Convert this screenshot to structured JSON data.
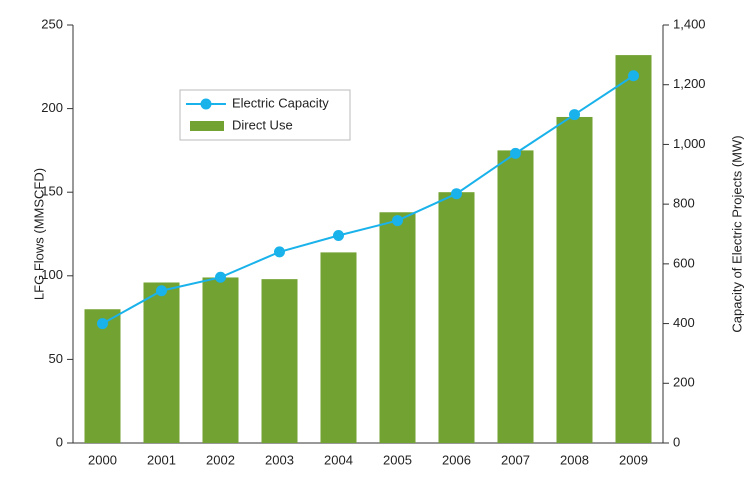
{
  "chart_data": {
    "type": "bar_line",
    "categories": [
      "2000",
      "2001",
      "2002",
      "2003",
      "2004",
      "2005",
      "2006",
      "2007",
      "2008",
      "2009"
    ],
    "series": [
      {
        "name": "Direct Use",
        "type": "bar",
        "color": "#72a232",
        "values": [
          80,
          96,
          99,
          98,
          114,
          138,
          150,
          175,
          195,
          232
        ]
      },
      {
        "name": "Electric Capacity",
        "type": "line",
        "axis": "y2",
        "color": "#1ab2ea",
        "values": [
          400,
          510,
          555,
          640,
          695,
          745,
          835,
          970,
          1100,
          1230
        ]
      }
    ],
    "ylabel": "LFG Flows (MMSCFD)",
    "y2label": "Capacity of Electric Projects (MW)",
    "ylim": [
      0,
      250
    ],
    "yticks": [
      0,
      50,
      100,
      150,
      200,
      250
    ],
    "y2lim": [
      0,
      1400
    ],
    "y2ticks": [
      0,
      200,
      400,
      600,
      800,
      {
        "value": 1000,
        "label": "1,000"
      },
      {
        "value": 1200,
        "label": "1,200"
      },
      {
        "value": 1400,
        "label": "1,400"
      }
    ],
    "legend": "upper left"
  }
}
